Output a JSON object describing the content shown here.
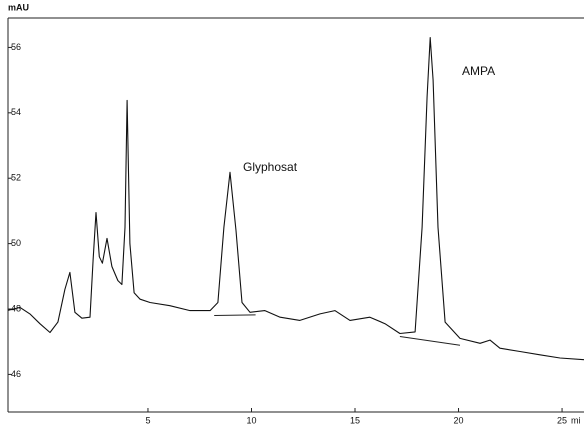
{
  "chart_data": {
    "type": "line",
    "y_label": "mAU",
    "x_label": "mi",
    "xlim": [
      -1.76,
      26.06
    ],
    "ylim": [
      44.85,
      56.9
    ],
    "xticks": [
      5,
      10,
      15,
      20,
      25
    ],
    "yticks": [
      46,
      48,
      50,
      52,
      54,
      56
    ],
    "series": [
      {
        "color": "#111111",
        "x": [
          -1.76,
          -1.18,
          -0.7,
          -0.22,
          0.27,
          0.65,
          0.99,
          1.23,
          1.47,
          1.81,
          2.2,
          2.35,
          2.49,
          2.65,
          2.8,
          3.02,
          3.26,
          3.55,
          3.74,
          3.89,
          3.99,
          4.13,
          4.33,
          4.62,
          5.1,
          6.06,
          7.03,
          8.0,
          8.38,
          8.67,
          8.96,
          9.25,
          9.54,
          9.93,
          10.65,
          11.38,
          12.34,
          13.31,
          14.03,
          14.76,
          15.72,
          16.45,
          17.17,
          17.9,
          18.24,
          18.48,
          18.63,
          18.77,
          19.01,
          19.35,
          20.07,
          21.04,
          21.52,
          22.0,
          22.97,
          23.93,
          24.9,
          26.06
        ],
        "values": [
          47.96,
          48.05,
          47.85,
          47.55,
          47.28,
          47.6,
          48.6,
          49.12,
          47.9,
          47.72,
          47.75,
          49.5,
          50.95,
          49.6,
          49.4,
          50.16,
          49.3,
          48.87,
          48.75,
          50.5,
          54.38,
          50.0,
          48.5,
          48.3,
          48.2,
          48.1,
          47.95,
          47.95,
          48.2,
          50.5,
          52.18,
          50.4,
          48.2,
          47.9,
          47.95,
          47.75,
          47.65,
          47.85,
          47.95,
          47.65,
          47.75,
          47.55,
          47.25,
          47.3,
          50.5,
          54.5,
          56.3,
          55.0,
          50.5,
          47.6,
          47.1,
          46.95,
          47.05,
          46.8,
          46.7,
          46.6,
          46.5,
          46.45
        ]
      }
    ],
    "baselines": [
      {
        "x": [
          8.2,
          10.2
        ],
        "values": [
          47.8,
          47.82
        ]
      },
      {
        "x": [
          17.17,
          20.07
        ],
        "values": [
          47.16,
          46.89
        ]
      }
    ],
    "annotations": [
      "Glyphosat",
      "AMPA"
    ]
  }
}
